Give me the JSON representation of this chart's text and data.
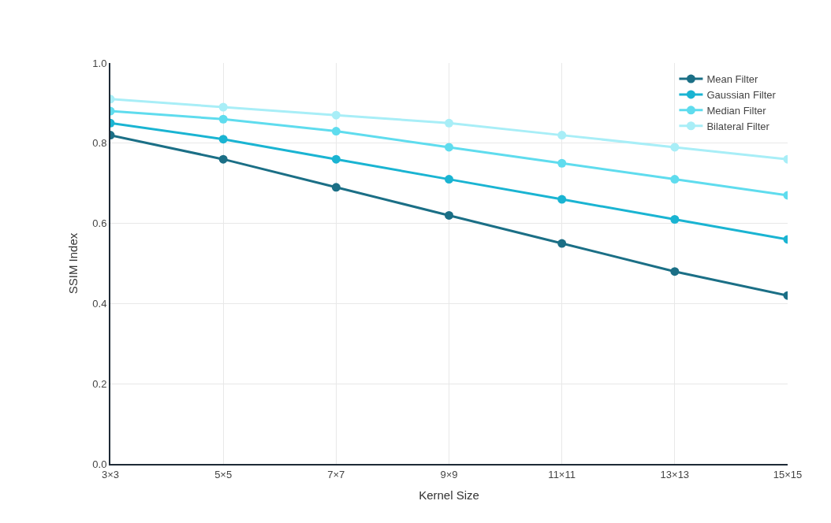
{
  "chart_data": {
    "type": "line",
    "xlabel": "Kernel Size",
    "ylabel": "SSIM Index",
    "categories": [
      "3×3",
      "5×5",
      "7×7",
      "9×9",
      "11×11",
      "13×13",
      "15×15"
    ],
    "series": [
      {
        "name": "Mean Filter",
        "color": "#1b6f86",
        "values": [
          0.82,
          0.76,
          0.69,
          0.62,
          0.55,
          0.48,
          0.42
        ]
      },
      {
        "name": "Gaussian Filter",
        "color": "#1ab4d2",
        "values": [
          0.85,
          0.81,
          0.76,
          0.71,
          0.66,
          0.61,
          0.56
        ]
      },
      {
        "name": "Median Filter",
        "color": "#5fdcee",
        "values": [
          0.88,
          0.86,
          0.83,
          0.79,
          0.75,
          0.71,
          0.67
        ]
      },
      {
        "name": "Bilateral Filter",
        "color": "#a8eef7",
        "values": [
          0.91,
          0.89,
          0.87,
          0.85,
          0.82,
          0.79,
          0.76
        ]
      }
    ],
    "ylim": [
      0,
      1
    ],
    "yticks": [
      {
        "value": 0,
        "label": "0.0"
      },
      0.2,
      0.4,
      0.6,
      0.8,
      {
        "value": 1,
        "label": "1.0"
      }
    ],
    "grid": true,
    "legend": "top right",
    "marker": "circle",
    "line_style": "solid"
  }
}
